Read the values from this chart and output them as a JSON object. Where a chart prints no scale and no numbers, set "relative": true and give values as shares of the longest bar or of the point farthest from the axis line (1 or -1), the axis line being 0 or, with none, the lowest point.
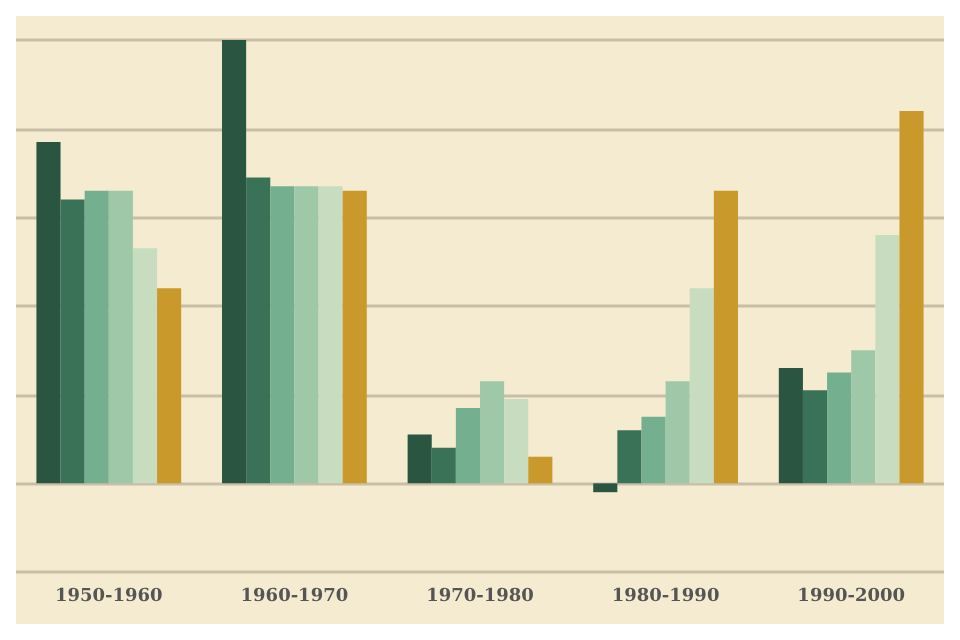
{
  "chart_data": {
    "type": "bar",
    "relative": true,
    "grid": true,
    "categories": [
      "1950-1960",
      "1960-1970",
      "1970-1980",
      "1980-1990",
      "1990-2000"
    ],
    "series": [
      {
        "color": "#2a5540",
        "values": [
          0.77,
          1.0,
          0.11,
          -0.02,
          0.26
        ]
      },
      {
        "color": "#3a7258",
        "values": [
          0.64,
          0.69,
          0.08,
          0.12,
          0.21
        ]
      },
      {
        "color": "#74b08f",
        "values": [
          0.66,
          0.67,
          0.17,
          0.15,
          0.25
        ]
      },
      {
        "color": "#9fc8a8",
        "values": [
          0.66,
          0.67,
          0.23,
          0.23,
          0.3
        ]
      },
      {
        "color": "#c8dcbf",
        "values": [
          0.53,
          0.67,
          0.19,
          0.44,
          0.56
        ]
      },
      {
        "color": "#c99a2b",
        "values": [
          0.44,
          0.66,
          0.06,
          0.66,
          0.84
        ]
      }
    ]
  }
}
